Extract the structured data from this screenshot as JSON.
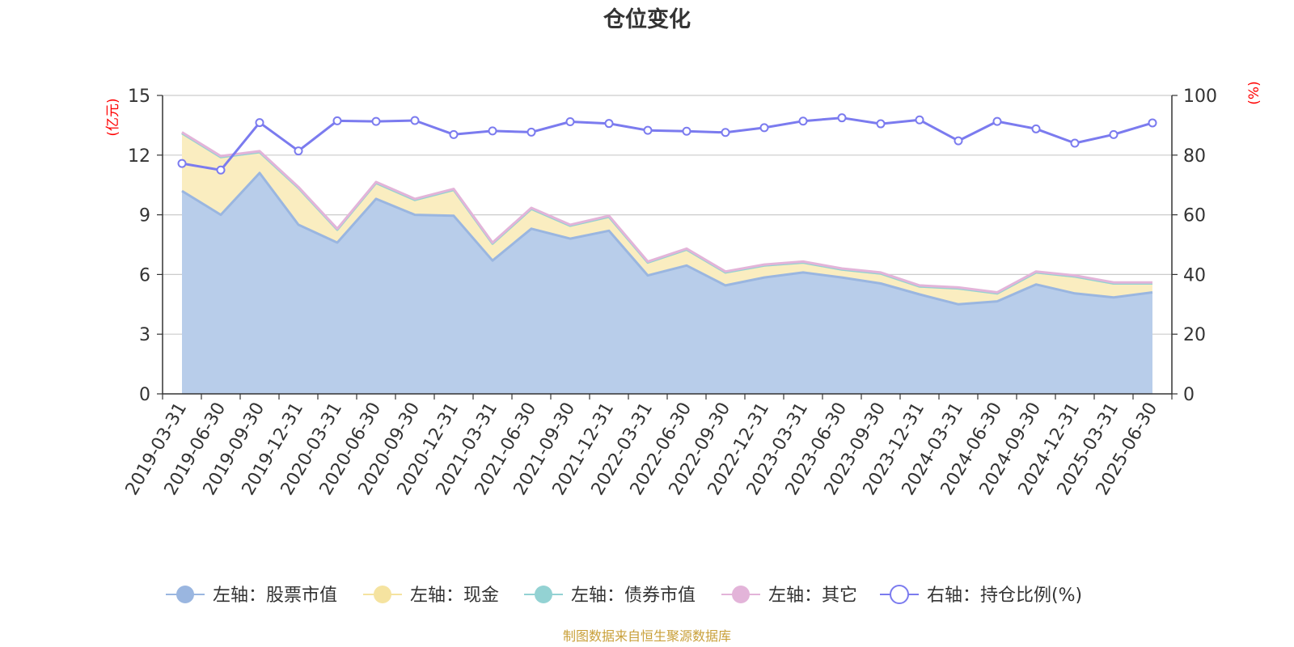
{
  "chart_data": {
    "type": "area",
    "title": "仓位变化",
    "footer": "制图数据来自恒生聚源数据库",
    "y_left": {
      "label": "(亿元)",
      "range": [
        0,
        15
      ],
      "ticks": [
        "0",
        "3",
        "6",
        "9",
        "12",
        "15"
      ]
    },
    "y_right": {
      "label": "(%)",
      "range": [
        0,
        100
      ],
      "ticks": [
        "0",
        "20",
        "40",
        "60",
        "80",
        "100"
      ]
    },
    "grid": true,
    "legend_position": "bottom",
    "categories": [
      "2019-03-31",
      "2019-06-30",
      "2019-09-30",
      "2019-12-31",
      "2020-03-31",
      "2020-06-30",
      "2020-09-30",
      "2020-12-31",
      "2021-03-31",
      "2021-06-30",
      "2021-09-30",
      "2021-12-31",
      "2022-03-31",
      "2022-06-30",
      "2022-09-30",
      "2022-12-31",
      "2023-03-31",
      "2023-06-30",
      "2023-09-30",
      "2023-12-31",
      "2024-03-31",
      "2024-06-30",
      "2024-09-30",
      "2024-12-31",
      "2025-03-31",
      "2025-06-30"
    ],
    "series": [
      {
        "name": "左轴：股票市值",
        "axis": "left",
        "kind": "stacked-area",
        "color": "#9ab6e0",
        "fill": "#b8cdea",
        "values": [
          10.2,
          9.0,
          11.1,
          8.5,
          7.6,
          9.8,
          9.0,
          8.95,
          6.7,
          8.3,
          7.8,
          8.2,
          5.95,
          6.45,
          5.45,
          5.85,
          6.1,
          5.85,
          5.55,
          5.0,
          4.5,
          4.65,
          5.5,
          5.05,
          4.85,
          5.1
        ]
      },
      {
        "name": "左轴：现金",
        "axis": "left",
        "kind": "stacked-area",
        "color": "#f5e3a0",
        "fill": "#faedc0",
        "values": [
          2.9,
          2.9,
          1.05,
          1.85,
          0.65,
          0.8,
          0.75,
          1.3,
          0.85,
          1.0,
          0.65,
          0.7,
          0.65,
          0.8,
          0.65,
          0.6,
          0.5,
          0.4,
          0.5,
          0.4,
          0.8,
          0.4,
          0.6,
          0.85,
          0.7,
          0.45
        ]
      },
      {
        "name": "左轴：债券市值",
        "axis": "left",
        "kind": "stacked-area",
        "color": "#93d2d3",
        "fill": "#b5e2e3",
        "values": [
          0,
          0,
          0,
          0,
          0,
          0,
          0,
          0,
          0,
          0,
          0,
          0,
          0,
          0,
          0,
          0,
          0,
          0,
          0,
          0,
          0,
          0,
          0,
          0,
          0,
          0
        ]
      },
      {
        "name": "左轴：其它",
        "axis": "left",
        "kind": "stacked-area",
        "color": "#e3b4d9",
        "fill": "#efcde8",
        "values": [
          0.05,
          0.05,
          0.05,
          0.05,
          0.05,
          0.05,
          0.05,
          0.05,
          0.05,
          0.05,
          0.05,
          0.05,
          0.05,
          0.05,
          0.05,
          0.05,
          0.05,
          0.05,
          0.05,
          0.05,
          0.05,
          0.05,
          0.05,
          0.05,
          0.05,
          0.05
        ]
      },
      {
        "name": "右轴：持仓比例(%)",
        "axis": "right",
        "kind": "line",
        "color": "#7b7bef",
        "values": [
          77.2,
          75.0,
          90.9,
          81.4,
          91.5,
          91.3,
          91.6,
          86.9,
          88.1,
          87.7,
          91.2,
          90.6,
          88.3,
          88.0,
          87.6,
          89.2,
          91.4,
          92.5,
          90.5,
          91.8,
          84.8,
          91.3,
          88.8,
          84.0,
          86.9,
          90.8
        ]
      }
    ]
  }
}
